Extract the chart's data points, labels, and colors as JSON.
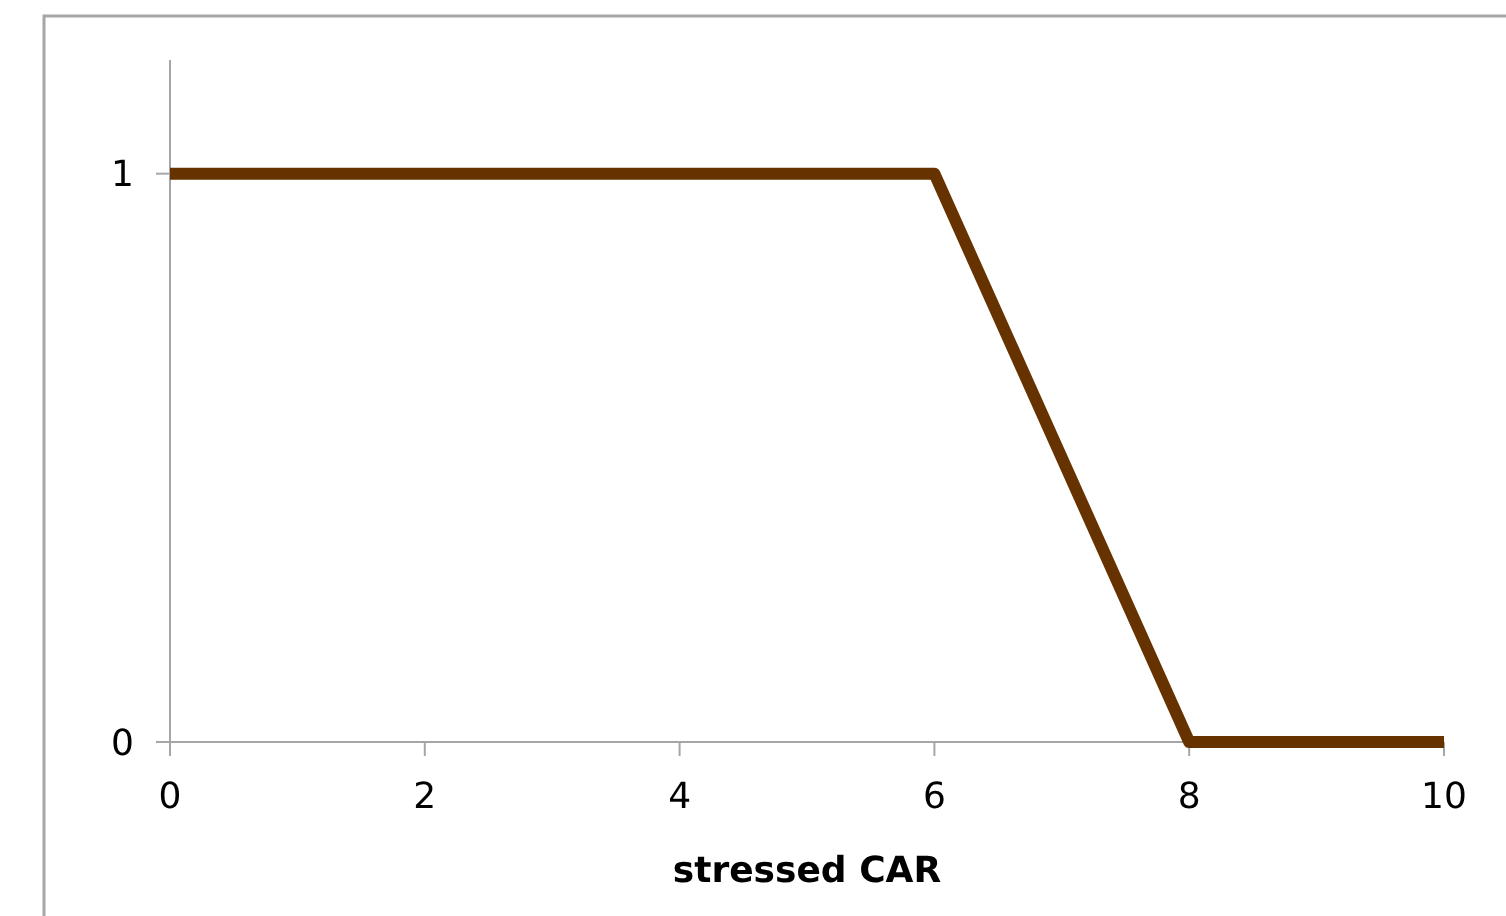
{
  "chart_data": {
    "type": "line",
    "xlabel": "stressed CAR",
    "x": [
      0,
      6,
      8,
      10
    ],
    "series": [
      {
        "color": "#663300",
        "values": [
          1,
          1,
          0,
          0
        ]
      }
    ],
    "xlim": [
      0,
      10
    ],
    "xticks": [
      0,
      2,
      4,
      6,
      8,
      10
    ],
    "ylim": [
      0,
      1.2
    ],
    "yticks": [
      0,
      1
    ],
    "grid": false,
    "marker": "none",
    "line_style": "solid"
  }
}
